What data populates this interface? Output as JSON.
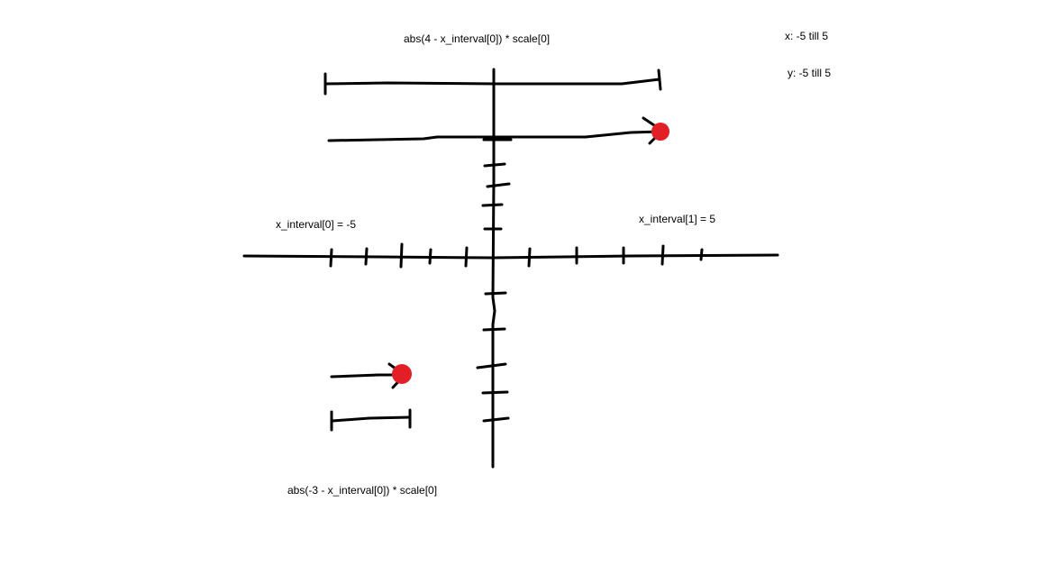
{
  "labels": {
    "top_formula": "abs(4 - x_interval[0]) * scale[0]",
    "bottom_formula": "abs(-3 - x_interval[0]) * scale[0]",
    "x_range": "x: -5 till 5",
    "y_range": "y: -5 till 5",
    "x_interval_left": "x_interval[0] = -5",
    "x_interval_right": "x_interval[1] = 5"
  },
  "colors": {
    "ink": "#000000",
    "point": "#e21f26",
    "background": "#ffffff"
  }
}
